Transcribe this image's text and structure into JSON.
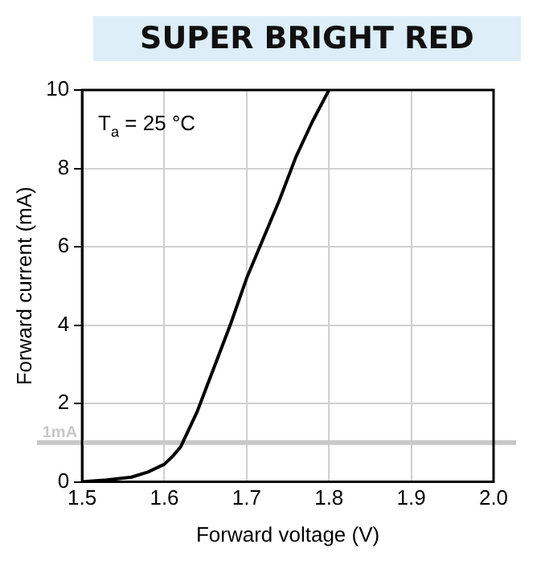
{
  "chart_data": {
    "type": "line",
    "title": "SUPER BRIGHT RED",
    "xlabel": "Forward voltage (V)",
    "ylabel": "Forward current (mA)",
    "annotations": [
      "T$_{a}$ = 25 °C"
    ],
    "series": [
      {
        "color": "#000000",
        "x": [
          1.5,
          1.53,
          1.56,
          1.58,
          1.6,
          1.61,
          1.62,
          1.64,
          1.66,
          1.68,
          1.7,
          1.72,
          1.74,
          1.76,
          1.78,
          1.8
        ],
        "values": [
          0,
          0.05,
          0.12,
          0.25,
          0.45,
          0.65,
          0.9,
          1.8,
          2.9,
          4.0,
          5.2,
          6.2,
          7.2,
          8.3,
          9.2,
          10
        ]
      }
    ],
    "xlim": [
      1.5,
      2.0
    ],
    "xticks": [
      {
        "value": 1.5,
        "label": "1.5"
      },
      {
        "value": 1.6,
        "label": "1.6"
      },
      {
        "value": 1.7,
        "label": "1.7"
      },
      {
        "value": 1.8,
        "label": "1.8"
      },
      {
        "value": 1.9,
        "label": "1.9"
      },
      {
        "value": 2.0,
        "label": "2.0"
      }
    ],
    "ylim": [
      0,
      10
    ],
    "yticks": [
      0,
      2,
      4,
      6,
      8,
      10
    ],
    "ref_lines": [
      {
        "axis": "y",
        "value": 1,
        "label": "1mA",
        "color": "#c8c8c8"
      }
    ],
    "grid": true,
    "legend": false,
    "marker": "none",
    "line_style": "solid"
  }
}
